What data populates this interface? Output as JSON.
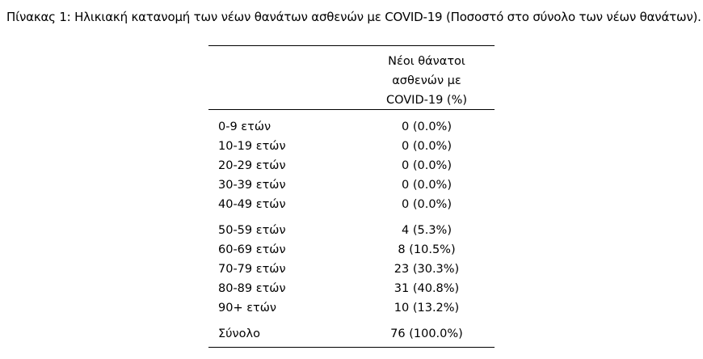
{
  "caption": "Πίνακας 1: Ηλικιακή κατανομή των νέων θανάτων ασθενών με COVID-19 (Ποσοστό στο σύνολο των νέων θανάτων).",
  "table": {
    "header": {
      "line1": "Νέοι θάνατοι",
      "line2": "ασθενών με",
      "line3": "COVID-19 (%)"
    },
    "rows": [
      {
        "age": "0-9 ετών",
        "value": "0 (0.0%)"
      },
      {
        "age": "10-19 ετών",
        "value": "0 (0.0%)"
      },
      {
        "age": "20-29 ετών",
        "value": "0 (0.0%)"
      },
      {
        "age": "30-39 ετών",
        "value": "0 (0.0%)"
      },
      {
        "age": "40-49 ετών",
        "value": "0 (0.0%)"
      },
      {
        "age": "50-59 ετών",
        "value": "4 (5.3%)"
      },
      {
        "age": "60-69 ετών",
        "value": "8 (10.5%)"
      },
      {
        "age": "70-79 ετών",
        "value": "23 (30.3%)"
      },
      {
        "age": "80-89 ετών",
        "value": "31 (40.8%)"
      },
      {
        "age": "90+ ετών",
        "value": "10 (13.2%)"
      }
    ],
    "total": {
      "label": "Σύνολο",
      "value": "76 (100.0%)"
    }
  }
}
